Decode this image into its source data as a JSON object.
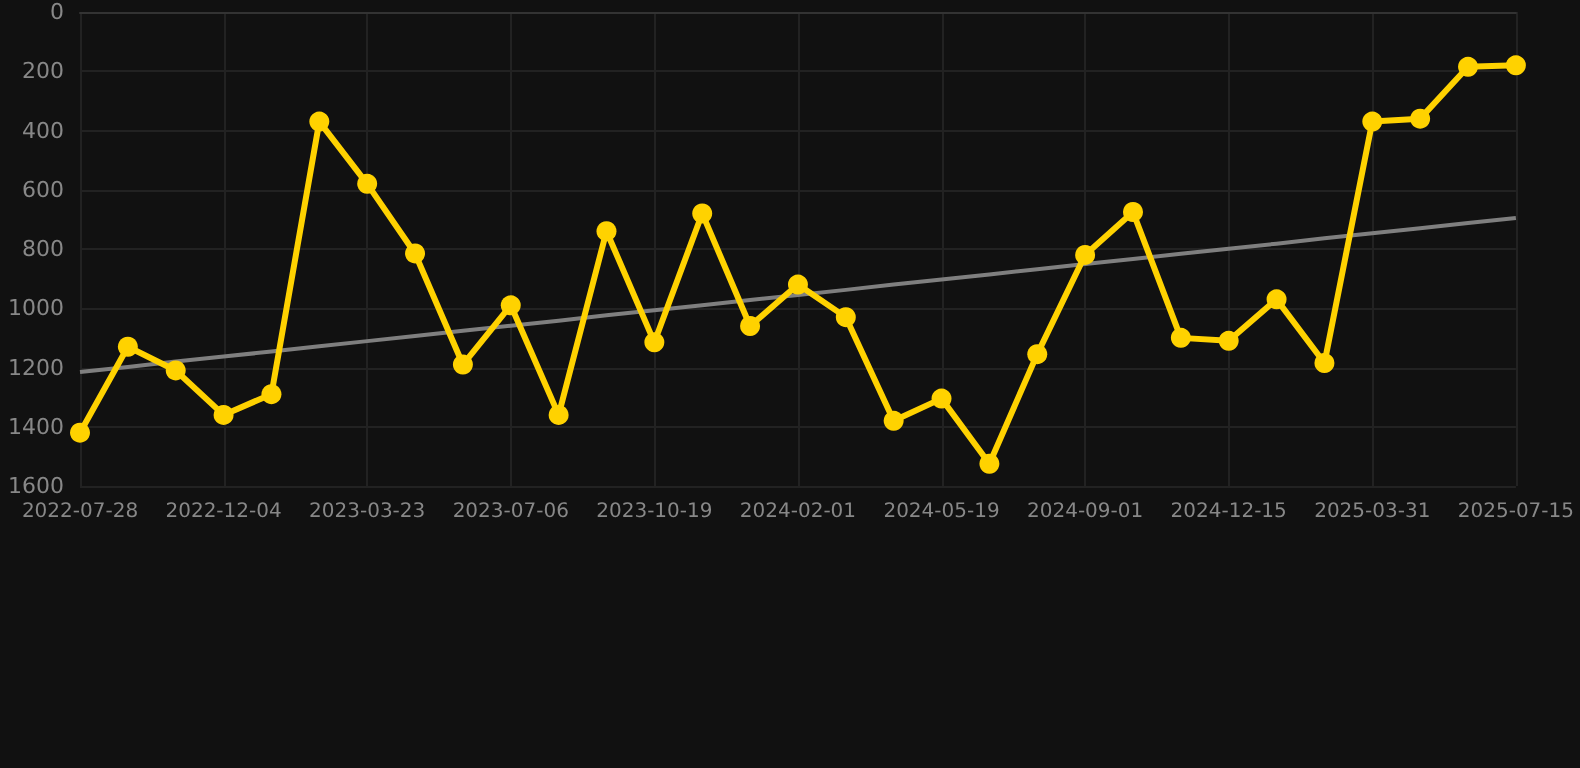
{
  "chart_data": {
    "type": "line",
    "categories": [
      "2022-07-28",
      null,
      null,
      "2022-12-04",
      null,
      null,
      "2023-03-23",
      null,
      null,
      "2023-07-06",
      null,
      null,
      "2023-10-19",
      null,
      null,
      "2024-02-01",
      null,
      null,
      "2024-05-19",
      null,
      null,
      "2024-09-01",
      null,
      null,
      "2024-12-15",
      null,
      null,
      "2025-03-31",
      null,
      null,
      "2025-07-15"
    ],
    "series": [
      {
        "color": "#ffd200",
        "marker": "circle",
        "values": [
          1420,
          1130,
          1210,
          1360,
          1290,
          370,
          580,
          815,
          1190,
          990,
          1360,
          740,
          1115,
          680,
          1060,
          920,
          1030,
          1380,
          1305,
          1525,
          1155,
          820,
          675,
          1100,
          1110,
          970,
          1185,
          370,
          360,
          185,
          180
        ]
      },
      {
        "color": "#7f7f7f",
        "marker": "none",
        "values": [
          1215,
          1198,
          1180,
          1163,
          1146,
          1128,
          1111,
          1094,
          1076,
          1059,
          1042,
          1024,
          1007,
          990,
          972,
          955,
          938,
          920,
          903,
          886,
          868,
          851,
          834,
          816,
          799,
          782,
          764,
          747,
          730,
          712,
          695
        ]
      }
    ],
    "ylim": [
      1600,
      0
    ],
    "yticks": [
      0,
      200,
      400,
      600,
      800,
      1000,
      1200,
      1400,
      1600
    ],
    "grid": true
  }
}
